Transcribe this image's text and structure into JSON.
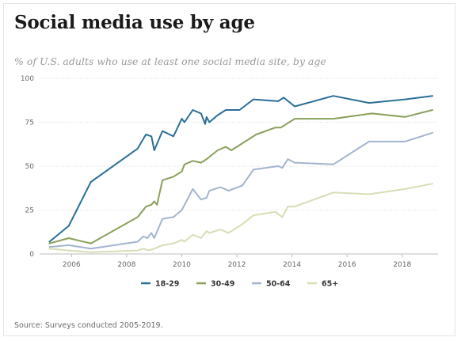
{
  "header": {
    "title": "Social media use by age",
    "subtitle": "% of U.S. adults who use at least one social media site, by age"
  },
  "footer": {
    "source": "Source: Surveys conducted 2005-2019."
  },
  "chart_data": {
    "type": "line",
    "title": "Social media use by age",
    "subtitle": "% of U.S. adults who use at least one social media site, by age",
    "xlabel": "",
    "ylabel": "",
    "xlim": [
      2005.1,
      2019.3
    ],
    "ylim": [
      0,
      100
    ],
    "x_ticks": [
      2006,
      2008,
      2010,
      2012,
      2014,
      2016,
      2018
    ],
    "y_ticks": [
      0,
      25,
      50,
      75,
      100
    ],
    "grid": "horizontal dotted",
    "legend_position": "bottom-center",
    "series": [
      {
        "name": "18-29",
        "color": "#2a6f97",
        "points": [
          [
            2005.2,
            7
          ],
          [
            2005.9,
            16
          ],
          [
            2006.7,
            41
          ],
          [
            2008.4,
            60
          ],
          [
            2008.7,
            68
          ],
          [
            2008.9,
            67
          ],
          [
            2009.0,
            59
          ],
          [
            2009.3,
            70
          ],
          [
            2009.7,
            67
          ],
          [
            2010.0,
            77
          ],
          [
            2010.1,
            75
          ],
          [
            2010.4,
            82
          ],
          [
            2010.7,
            80
          ],
          [
            2010.85,
            74
          ],
          [
            2010.9,
            78
          ],
          [
            2011.0,
            75
          ],
          [
            2011.3,
            79
          ],
          [
            2011.6,
            82
          ],
          [
            2012.1,
            82
          ],
          [
            2012.6,
            88
          ],
          [
            2013.5,
            87
          ],
          [
            2013.7,
            89
          ],
          [
            2014.1,
            84
          ],
          [
            2015.5,
            90
          ],
          [
            2016.8,
            86
          ],
          [
            2018.1,
            88
          ],
          [
            2019.1,
            90
          ]
        ]
      },
      {
        "name": "30-49",
        "color": "#8aa05a",
        "points": [
          [
            2005.2,
            6
          ],
          [
            2005.9,
            9
          ],
          [
            2006.7,
            6
          ],
          [
            2008.4,
            21
          ],
          [
            2008.7,
            27
          ],
          [
            2008.9,
            28
          ],
          [
            2009.0,
            30
          ],
          [
            2009.1,
            28
          ],
          [
            2009.3,
            42
          ],
          [
            2009.7,
            44
          ],
          [
            2010.0,
            47
          ],
          [
            2010.1,
            51
          ],
          [
            2010.4,
            53
          ],
          [
            2010.7,
            52
          ],
          [
            2010.9,
            54
          ],
          [
            2011.3,
            59
          ],
          [
            2011.6,
            61
          ],
          [
            2011.8,
            59
          ],
          [
            2012.3,
            64
          ],
          [
            2012.7,
            68
          ],
          [
            2013.4,
            72
          ],
          [
            2013.6,
            72
          ],
          [
            2014.1,
            77
          ],
          [
            2015.5,
            77
          ],
          [
            2016.9,
            80
          ],
          [
            2018.1,
            78
          ],
          [
            2019.1,
            82
          ]
        ]
      },
      {
        "name": "50-64",
        "color": "#a2b4cf",
        "points": [
          [
            2005.2,
            4
          ],
          [
            2005.9,
            5
          ],
          [
            2006.7,
            3
          ],
          [
            2008.4,
            7
          ],
          [
            2008.6,
            10
          ],
          [
            2008.75,
            9
          ],
          [
            2008.9,
            12
          ],
          [
            2009.0,
            9
          ],
          [
            2009.3,
            20
          ],
          [
            2009.7,
            21
          ],
          [
            2010.0,
            25
          ],
          [
            2010.4,
            37
          ],
          [
            2010.7,
            31
          ],
          [
            2010.9,
            32
          ],
          [
            2011.0,
            36
          ],
          [
            2011.4,
            38
          ],
          [
            2011.7,
            36
          ],
          [
            2012.2,
            39
          ],
          [
            2012.6,
            48
          ],
          [
            2013.5,
            50
          ],
          [
            2013.65,
            49
          ],
          [
            2013.85,
            54
          ],
          [
            2014.1,
            52
          ],
          [
            2015.5,
            51
          ],
          [
            2016.8,
            64
          ],
          [
            2018.1,
            64
          ],
          [
            2019.1,
            69
          ]
        ]
      },
      {
        "name": "65+",
        "color": "#d6deb4",
        "points": [
          [
            2005.2,
            3
          ],
          [
            2005.9,
            2
          ],
          [
            2006.7,
            1
          ],
          [
            2008.4,
            2
          ],
          [
            2008.6,
            3
          ],
          [
            2008.8,
            2
          ],
          [
            2009.0,
            3
          ],
          [
            2009.3,
            5
          ],
          [
            2009.7,
            6
          ],
          [
            2010.0,
            8
          ],
          [
            2010.1,
            7
          ],
          [
            2010.4,
            11
          ],
          [
            2010.7,
            9
          ],
          [
            2010.9,
            13
          ],
          [
            2011.0,
            12
          ],
          [
            2011.4,
            14
          ],
          [
            2011.7,
            12
          ],
          [
            2012.2,
            17
          ],
          [
            2012.6,
            22
          ],
          [
            2013.4,
            24
          ],
          [
            2013.65,
            21
          ],
          [
            2013.85,
            27
          ],
          [
            2014.1,
            27
          ],
          [
            2015.5,
            35
          ],
          [
            2016.8,
            34
          ],
          [
            2018.1,
            37
          ],
          [
            2019.1,
            40
          ]
        ]
      }
    ]
  }
}
